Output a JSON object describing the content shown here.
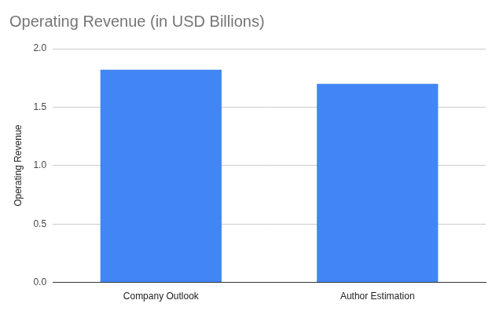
{
  "chart_data": {
    "type": "bar",
    "title": "Operating Revenue (in USD Billions)",
    "y_label": "Operating Revenue",
    "categories": [
      "Company Outlook",
      "Author Estimation"
    ],
    "values": [
      1.82,
      1.7
    ],
    "color": "#4285f4",
    "ylim": [
      0,
      2
    ],
    "yticks": [
      {
        "value": 0,
        "label": "0.0"
      },
      0.5,
      {
        "value": 1,
        "label": "1.0"
      },
      1.5,
      {
        "value": 2,
        "label": "2.0"
      }
    ],
    "grid": true
  }
}
